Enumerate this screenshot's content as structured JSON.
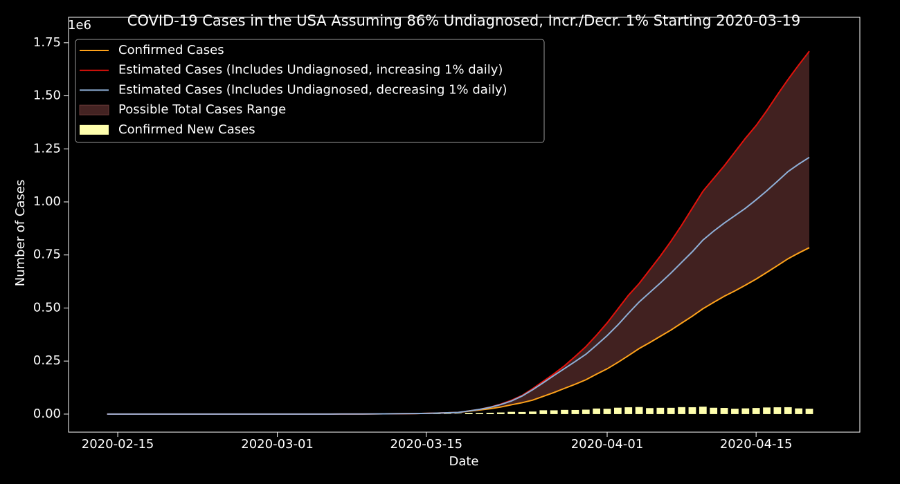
{
  "chart_data": {
    "type": "line",
    "title": "COVID-19 Cases in the USA Assuming 86% Undiagnosed, Incr./Decr. 1% Starting 2020-03-19",
    "x_label": "Date",
    "y_label": "Number of Cases",
    "y_offset_label": "1e6",
    "x": [
      "2020-02-14",
      "2020-02-15",
      "2020-02-16",
      "2020-02-17",
      "2020-02-18",
      "2020-02-19",
      "2020-02-20",
      "2020-02-21",
      "2020-02-22",
      "2020-02-23",
      "2020-02-24",
      "2020-02-25",
      "2020-02-26",
      "2020-02-27",
      "2020-02-28",
      "2020-02-29",
      "2020-03-01",
      "2020-03-02",
      "2020-03-03",
      "2020-03-04",
      "2020-03-05",
      "2020-03-06",
      "2020-03-07",
      "2020-03-08",
      "2020-03-09",
      "2020-03-10",
      "2020-03-11",
      "2020-03-12",
      "2020-03-13",
      "2020-03-14",
      "2020-03-15",
      "2020-03-16",
      "2020-03-17",
      "2020-03-18",
      "2020-03-19",
      "2020-03-20",
      "2020-03-21",
      "2020-03-22",
      "2020-03-23",
      "2020-03-24",
      "2020-03-25",
      "2020-03-26",
      "2020-03-27",
      "2020-03-28",
      "2020-03-29",
      "2020-03-30",
      "2020-03-31",
      "2020-04-01",
      "2020-04-02",
      "2020-04-03",
      "2020-04-04",
      "2020-04-05",
      "2020-04-06",
      "2020-04-07",
      "2020-04-08",
      "2020-04-09",
      "2020-04-10",
      "2020-04-11",
      "2020-04-12",
      "2020-04-13",
      "2020-04-14",
      "2020-04-15",
      "2020-04-16",
      "2020-04-17",
      "2020-04-18",
      "2020-04-19",
      "2020-04-20"
    ],
    "series": [
      {
        "name": "Confirmed Cases",
        "color": "#ffa31a",
        "values": [
          15,
          15,
          15,
          15,
          15,
          15,
          15,
          35,
          35,
          35,
          53,
          53,
          59,
          60,
          62,
          70,
          76,
          101,
          122,
          153,
          221,
          278,
          417,
          537,
          605,
          959,
          1281,
          1663,
          2179,
          2726,
          3499,
          4632,
          6421,
          7786,
          13677,
          19100,
          25489,
          33276,
          43847,
          53740,
          65778,
          83836,
          101657,
          121478,
          140886,
          161807,
          188172,
          213372,
          243453,
          275586,
          308850,
          337072,
          366667,
          396223,
          429052,
          461437,
          496535,
          526396,
          555313,
          580619,
          607670,
          636350,
          667592,
          699706,
          732197,
          759086,
          784326
        ]
      },
      {
        "name": "Estimated Cases (Includes Undiagnosed, increasing 1% daily)",
        "color": "#e3120b",
        "values": [
          15,
          15,
          15,
          15,
          15,
          15,
          15,
          35,
          35,
          35,
          53,
          53,
          59,
          60,
          62,
          70,
          76,
          101,
          122,
          153,
          221,
          278,
          417,
          537,
          605,
          959,
          1281,
          1663,
          2179,
          2726,
          3499,
          4632,
          6421,
          7786,
          15000,
          22000,
          33000,
          47000,
          65000,
          88000,
          120000,
          155000,
          190000,
          228000,
          272000,
          318000,
          372000,
          430000,
          495000,
          560000,
          615000,
          680000,
          745000,
          815000,
          890000,
          970000,
          1050000,
          1110000,
          1170000,
          1235000,
          1300000,
          1360000,
          1430000,
          1505000,
          1577000,
          1645000,
          1710000
        ]
      },
      {
        "name": "Estimated Cases (Includes Undiagnosed, decreasing 1% daily)",
        "color": "#8fb0d8",
        "values": [
          15,
          15,
          15,
          15,
          15,
          15,
          15,
          35,
          35,
          35,
          53,
          53,
          59,
          60,
          62,
          70,
          76,
          101,
          122,
          153,
          221,
          278,
          417,
          537,
          605,
          959,
          1281,
          1663,
          2179,
          2726,
          3499,
          4632,
          6421,
          7786,
          15000,
          22000,
          32000,
          45000,
          62000,
          85000,
          115000,
          148000,
          182000,
          215000,
          248000,
          282000,
          325000,
          370000,
          420000,
          475000,
          528000,
          573000,
          618000,
          665000,
          715000,
          765000,
          820000,
          862000,
          900000,
          935000,
          970000,
          1010000,
          1052000,
          1097000,
          1143000,
          1178000,
          1210000
        ]
      }
    ],
    "fill_between": {
      "name": "Possible Total Cases Range",
      "color": "#442322",
      "lower": 0,
      "upper": 1
    },
    "bars": {
      "name": "Confirmed New Cases",
      "color": "#ffffad",
      "values": [
        0,
        0,
        0,
        0,
        0,
        0,
        0,
        20,
        0,
        0,
        18,
        0,
        6,
        1,
        2,
        8,
        6,
        25,
        21,
        31,
        68,
        57,
        139,
        120,
        68,
        354,
        322,
        382,
        516,
        547,
        773,
        1133,
        1789,
        1365,
        5891,
        5423,
        6389,
        7787,
        10571,
        9893,
        12038,
        18058,
        17821,
        19821,
        19408,
        20921,
        26365,
        25200,
        30081,
        32133,
        33264,
        28222,
        29595,
        29556,
        32829,
        32385,
        35098,
        29861,
        28917,
        25306,
        27051,
        28680,
        31242,
        32114,
        32491,
        26889,
        25240
      ]
    },
    "xlim": [
      "2020-02-10T09:00Z",
      "2020-04-24T18:00Z"
    ],
    "xticks": [
      "2020-02-15",
      "2020-03-01",
      "2020-03-15",
      "2020-04-01",
      "2020-04-15"
    ],
    "ylim": [
      -85000,
      1870000
    ],
    "yticks": [
      {
        "value": 0,
        "label": "0.00"
      },
      {
        "value": 250000,
        "label": "0.25"
      },
      {
        "value": 500000,
        "label": "0.50"
      },
      {
        "value": 750000,
        "label": "0.75"
      },
      {
        "value": 1000000,
        "label": "1.00"
      },
      {
        "value": 1250000,
        "label": "1.25"
      },
      {
        "value": 1500000,
        "label": "1.50"
      },
      {
        "value": 1750000,
        "label": "1.75"
      }
    ],
    "legend": "upper left"
  }
}
